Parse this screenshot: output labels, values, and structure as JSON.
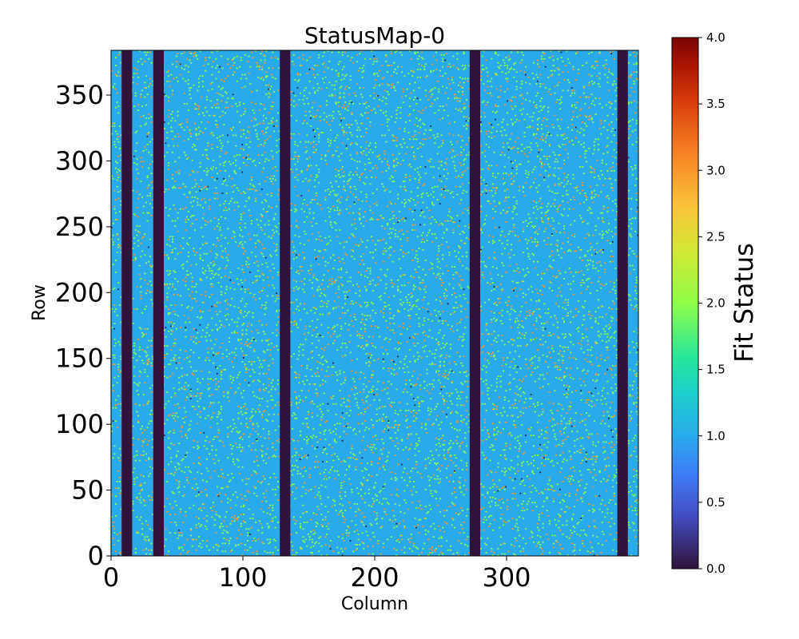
{
  "chart_data": {
    "type": "heatmap",
    "title": "StatusMap-0",
    "xlabel": "Column",
    "ylabel": "Row",
    "xlim": [
      0,
      400
    ],
    "ylim": [
      0,
      384
    ],
    "x_ticks": [
      0,
      100,
      200,
      300
    ],
    "x_tick_labels": [
      "0",
      "100",
      "200",
      "300"
    ],
    "y_ticks": [
      0,
      50,
      100,
      150,
      200,
      250,
      300,
      350
    ],
    "y_tick_labels": [
      "0",
      "50",
      "100",
      "150",
      "200",
      "250",
      "300",
      "350"
    ],
    "colorbar": {
      "label": "Fit Status",
      "colormap": "turbo",
      "range": [
        0.0,
        4.0
      ],
      "ticks": [
        0.0,
        0.5,
        1.0,
        1.5,
        2.0,
        2.5,
        3.0,
        3.5,
        4.0
      ],
      "tick_labels": [
        "0.0",
        "0.5",
        "1.0",
        "1.5",
        "2.0",
        "2.5",
        "3.0",
        "3.5",
        "4.0"
      ]
    },
    "dominant_value": 1.0,
    "value_mix": [
      {
        "value": 1.0,
        "share": 0.78
      },
      {
        "value": 2.0,
        "share": 0.15
      },
      {
        "value": 3.0,
        "share": 0.065
      },
      {
        "value": 0.0,
        "share": 0.005
      }
    ],
    "zero_columns": [
      {
        "start": 8,
        "end": 16
      },
      {
        "start": 32,
        "end": 40
      },
      {
        "start": 128,
        "end": 136
      },
      {
        "start": 272,
        "end": 280
      },
      {
        "start": 384,
        "end": 392
      }
    ]
  }
}
